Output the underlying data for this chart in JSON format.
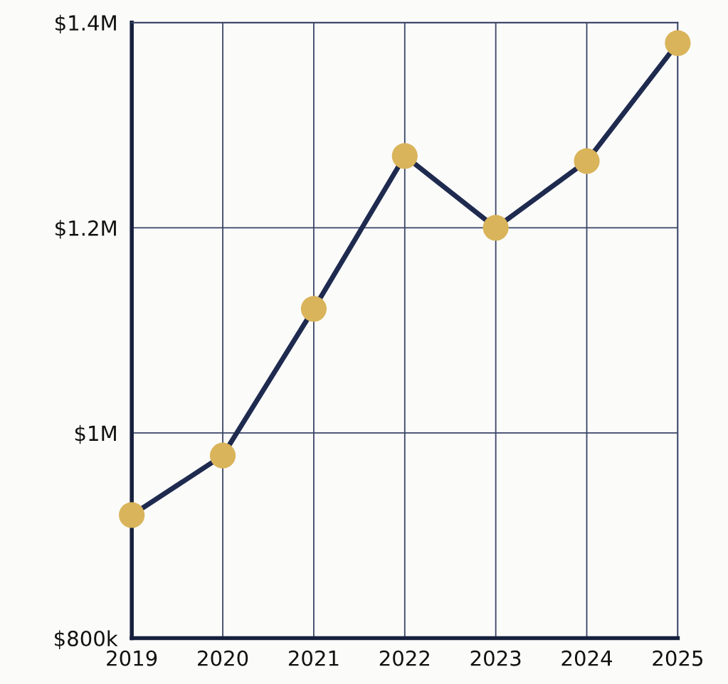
{
  "chart_data": {
    "type": "line",
    "categories": [
      "2019",
      "2020",
      "2021",
      "2022",
      "2023",
      "2024",
      "2025"
    ],
    "series": [
      {
        "color": "#1f2a4f",
        "colors": [
          "#d9b45a",
          "#d9b45a",
          "#d9b45a",
          "#d9b45a",
          "#d9b45a",
          "#d9b45a",
          "#d9b45a"
        ],
        "values": [
          920000,
          978000,
          1121000,
          1270000,
          1200000,
          1265000,
          1380000
        ]
      }
    ],
    "ylim": [
      800000,
      1400000
    ],
    "yticks": [
      {
        "value": 800000,
        "label": "$800k"
      },
      {
        "value": 1000000,
        "label": "$1M"
      },
      {
        "value": 1200000,
        "label": "$1.2M"
      },
      {
        "value": 1400000,
        "label": "$1.4M"
      }
    ],
    "grid": true,
    "marker": "circle",
    "line_style": "solid"
  }
}
